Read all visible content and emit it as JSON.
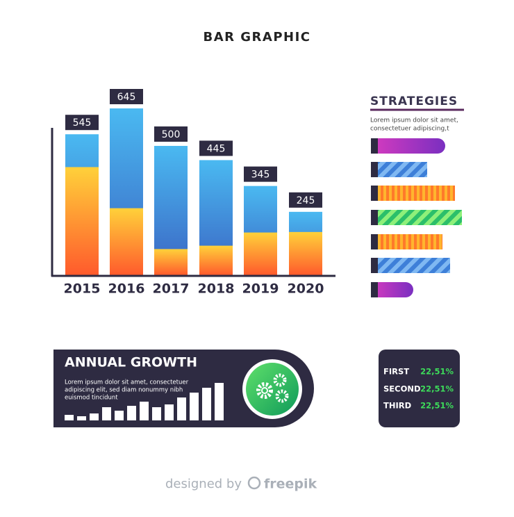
{
  "chart_data": {
    "type": "bar",
    "title": "BAR GRAPHIC",
    "categories": [
      "2015",
      "2016",
      "2017",
      "2018",
      "2019",
      "2020"
    ],
    "values": [
      545,
      645,
      500,
      445,
      345,
      245
    ],
    "lower_values": [
      418,
      259,
      101,
      114,
      165,
      167
    ],
    "color": "#4ab9f1",
    "lower_color": "#ffd13a"
  },
  "strategies": {
    "title": "STRATEGIES",
    "text": [
      "Lorem ipsum dolor sit amet,",
      "consectetuer adipiscing,t"
    ]
  },
  "annual_growth": {
    "title": "ANNUAL GROWTH",
    "text": [
      "Lorem ipsum dolor sit amet, consectetuer",
      "adipiscing elit, sed diam nonummy nibh",
      "euismod tincidunt"
    ]
  },
  "stats": {
    "rows": [
      [
        "FIRST",
        "22,51%"
      ],
      [
        "SECOND",
        "22,51%"
      ],
      [
        "THIRD",
        "22,51%"
      ]
    ]
  },
  "footer": {
    "text": "designed by",
    "brand": "freepik"
  }
}
